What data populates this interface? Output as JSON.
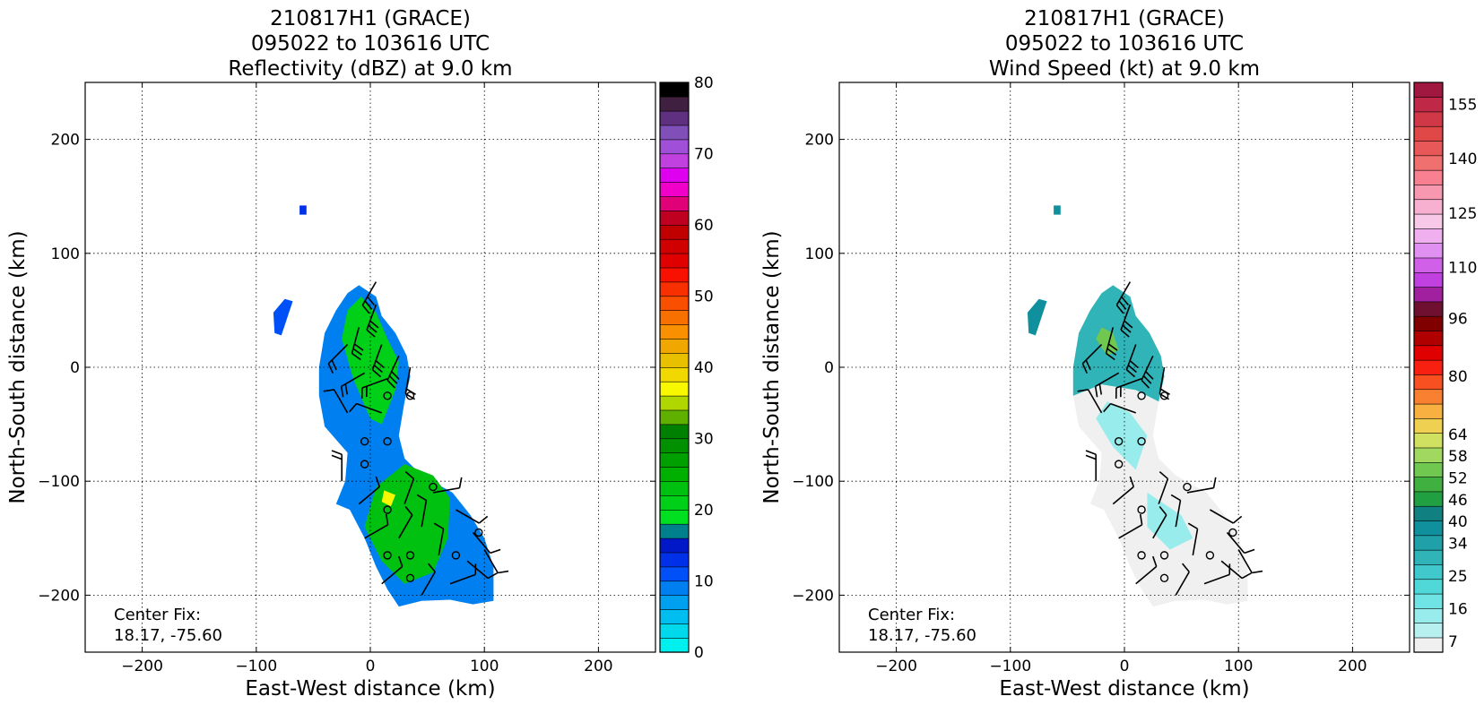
{
  "chart_data": [
    {
      "type": "heatmap",
      "title_lines": [
        "210817H1 (GRACE)",
        "095022 to 103616 UTC",
        "Reflectivity (dBZ) at 9.0 km"
      ],
      "xlabel": "East-West distance (km)",
      "ylabel": "North-South distance (km)",
      "xlim": [
        -250,
        250
      ],
      "ylim": [
        -250,
        250
      ],
      "xticks": [
        -200,
        -100,
        0,
        100,
        200
      ],
      "yticks": [
        -200,
        -100,
        0,
        100,
        200
      ],
      "grid": true,
      "annotation_lines": [
        "Center Fix:",
        "18.17, -75.60"
      ],
      "colorbar": {
        "min": 0,
        "max": 80,
        "ticks": [
          0,
          10,
          20,
          30,
          40,
          50,
          60,
          70,
          80
        ],
        "colors": [
          "#00f0f0",
          "#00d8ec",
          "#00bff0",
          "#00a0f0",
          "#0080f0",
          "#0050f8",
          "#0030e8",
          "#0018c8",
          "#00808c",
          "#00e020",
          "#00d018",
          "#00c010",
          "#00b000",
          "#00a000",
          "#009000",
          "#008000",
          "#60b000",
          "#b0d800",
          "#f8f800",
          "#f0d800",
          "#e8c000",
          "#f0a800",
          "#f89000",
          "#f87000",
          "#f85000",
          "#f83000",
          "#f81000",
          "#e00000",
          "#d00000",
          "#c00000",
          "#c00020",
          "#e00078",
          "#f000c8",
          "#e000f0",
          "#c040e0",
          "#a050d8",
          "#8050b8",
          "#603080",
          "#402040",
          "#000000"
        ]
      },
      "wind_barbs": true
    },
    {
      "type": "heatmap",
      "title_lines": [
        "210817H1 (GRACE)",
        "095022 to 103616 UTC",
        "Wind Speed (kt) at 9.0 km"
      ],
      "xlabel": "East-West distance (km)",
      "ylabel": "North-South distance (km)",
      "xlim": [
        -250,
        250
      ],
      "ylim": [
        -250,
        250
      ],
      "xticks": [
        -200,
        -100,
        0,
        100,
        200
      ],
      "yticks": [
        -200,
        -100,
        0,
        100,
        200
      ],
      "grid": true,
      "annotation_lines": [
        "Center Fix:",
        "18.17, -75.60"
      ],
      "colorbar": {
        "min": 4,
        "max": 161,
        "ticks": [
          7,
          16,
          25,
          34,
          40,
          46,
          52,
          58,
          64,
          80,
          96,
          110,
          125,
          140,
          155
        ],
        "colors": [
          "#f0f0f0",
          "#b8f0f0",
          "#98ecec",
          "#70e4e4",
          "#50d8d8",
          "#40c8cc",
          "#30b4b8",
          "#20a0a8",
          "#10909c",
          "#108080",
          "#20a040",
          "#40b040",
          "#70c850",
          "#a0d860",
          "#d0e060",
          "#f0d050",
          "#f8b040",
          "#f88030",
          "#f85020",
          "#f82010",
          "#e00000",
          "#b00000",
          "#800000",
          "#701030",
          "#a020a0",
          "#c040e0",
          "#d060e8",
          "#e090f0",
          "#f0b0f0",
          "#f8c8e8",
          "#f8b0d0",
          "#f898b0",
          "#f88090",
          "#f07070",
          "#e85858",
          "#e04848",
          "#d03848",
          "#c02848",
          "#a01840"
        ]
      },
      "wind_barbs": true
    }
  ]
}
